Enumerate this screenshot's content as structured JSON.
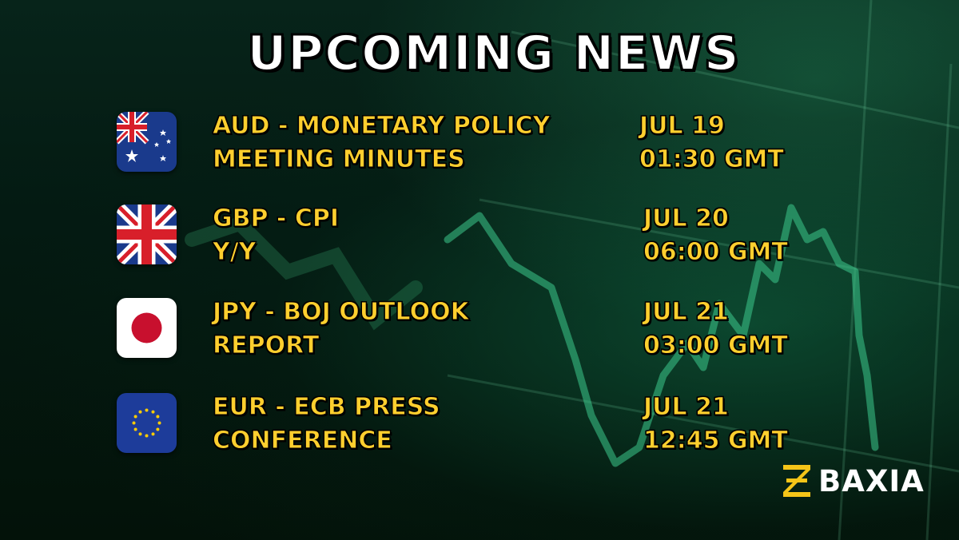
{
  "title": "UPCOMING NEWS",
  "brand": {
    "name": "BAXIA",
    "accent_color": "#f5c518"
  },
  "text_color": "#ffcf2e",
  "events": [
    {
      "flag": "australia-flag",
      "name_line1": "AUD - MONETARY POLICY",
      "name_line2": "MEETING MINUTES",
      "date": "JUL 19",
      "time": "01:30 GMT"
    },
    {
      "flag": "uk-flag",
      "name_line1": "GBP - CPI",
      "name_line2": "Y/Y",
      "date": "JUL 20",
      "time": "06:00 GMT"
    },
    {
      "flag": "japan-flag",
      "name_line1": "JPY - BOJ OUTLOOK",
      "name_line2": "REPORT",
      "date": "JUL 21",
      "time": "03:00 GMT"
    },
    {
      "flag": "eu-flag",
      "name_line1": "EUR - ECB PRESS",
      "name_line2": "CONFERENCE",
      "date": "JUL 21",
      "time": "12:45 GMT"
    }
  ]
}
